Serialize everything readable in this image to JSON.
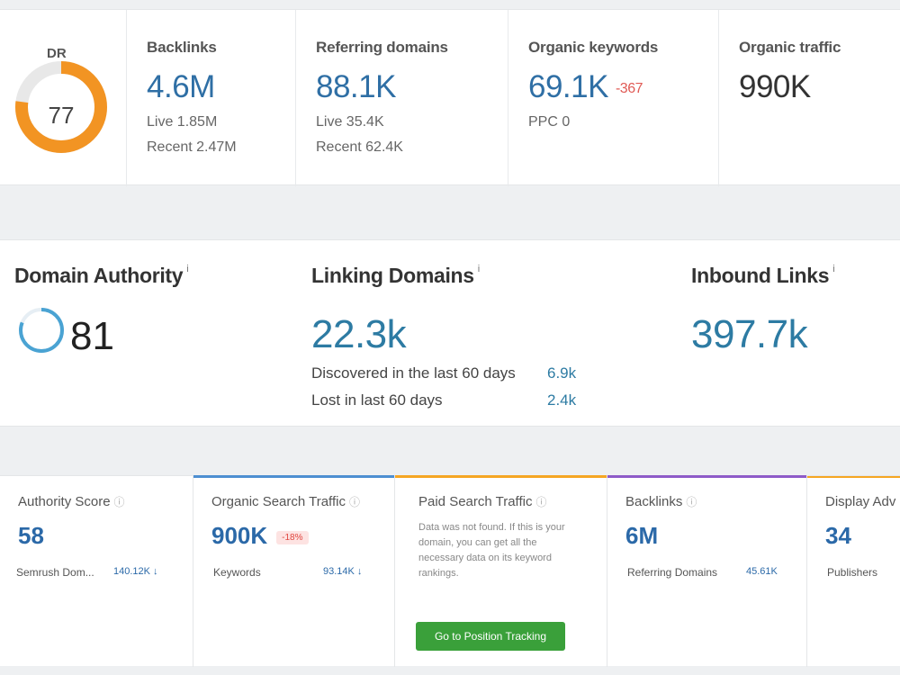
{
  "ahrefs": {
    "dr": {
      "label": "DR",
      "value": "77",
      "fraction": 0.77,
      "ring_color": "#f29423",
      "track_color": "#e8e8e8"
    },
    "backlinks": {
      "label": "Backlinks",
      "value": "4.6M",
      "live": "Live 1.85M",
      "recent": "Recent 2.47M"
    },
    "referring_domains": {
      "label": "Referring domains",
      "value": "88.1K",
      "live": "Live 35.4K",
      "recent": "Recent 62.4K"
    },
    "organic_keywords": {
      "label": "Organic keywords",
      "value": "69.1K",
      "delta": "-367",
      "ppc": "PPC 0"
    },
    "organic_traffic": {
      "label": "Organic traffic",
      "value": "990K"
    }
  },
  "moz": {
    "domain_authority": {
      "label": "Domain Authority",
      "info": "i",
      "value": "81",
      "ring_color": "#4aa3d3"
    },
    "linking_domains": {
      "label": "Linking Domains",
      "info": "i",
      "value": "22.3k",
      "discovered_label": "Discovered in the last 60 days",
      "discovered_value": "6.9k",
      "lost_label": "Lost in last 60 days",
      "lost_value": "2.4k"
    },
    "inbound_links": {
      "label": "Inbound Links",
      "info": "i",
      "value": "397.7k"
    }
  },
  "semrush": {
    "authority_score": {
      "title": "Authority Score",
      "value": "58",
      "row_label": "Semrush Dom...",
      "row_value": "140.12K ↓"
    },
    "organic_search_traffic": {
      "title": "Organic Search Traffic",
      "value": "900K",
      "badge": "-18%",
      "row_label": "Keywords",
      "row_value": "93.14K ↓",
      "bar_color": "#4d8fd1"
    },
    "paid_search_traffic": {
      "title": "Paid Search Traffic",
      "message": "Data was not found. If this is your domain, you can get all the necessary data on its keyword rankings.",
      "button": "Go to Position Tracking",
      "bar_color": "#f5a623"
    },
    "backlinks": {
      "title": "Backlinks",
      "value": "6M",
      "row_label": "Referring Domains",
      "row_value": "45.61K",
      "bar_color": "#8e5bc8"
    },
    "display_advertising": {
      "title": "Display Adv",
      "value": "34",
      "row_label": "Publishers",
      "bar_color": "#f5a623"
    }
  }
}
